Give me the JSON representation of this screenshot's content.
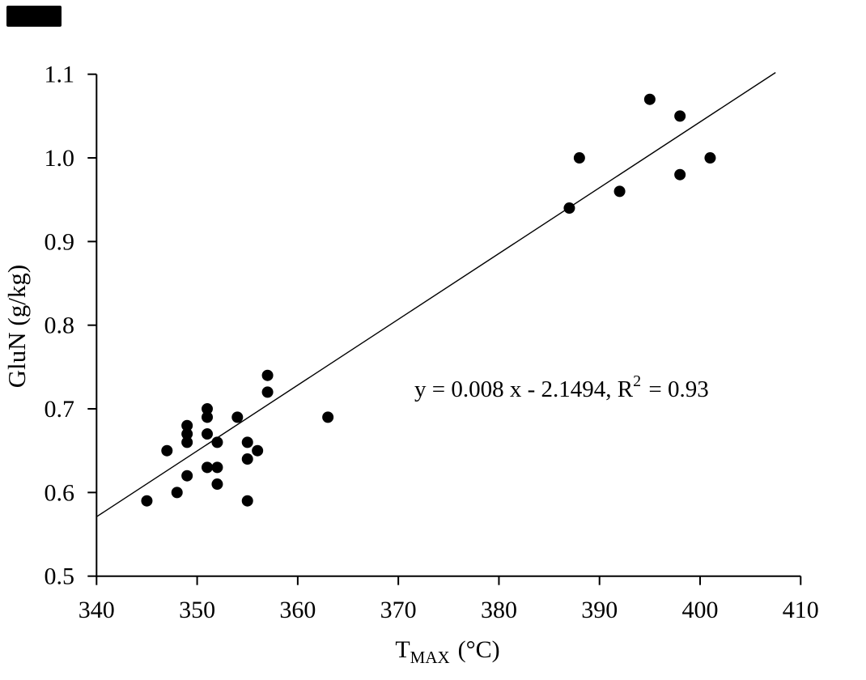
{
  "decor": {
    "corner_box_color": "#000000"
  },
  "chart_data": {
    "type": "scatter",
    "title": "",
    "xlabel": {
      "prefix": "T",
      "sub": "MAX",
      "suffix": "(°C)",
      "full": "TMAX (°C)"
    },
    "ylabel": "GluN (g/kg)",
    "xlim": [
      340,
      410
    ],
    "ylim": [
      0.5,
      1.1
    ],
    "x_ticks": [
      "340",
      "350",
      "360",
      "370",
      "380",
      "390",
      "400",
      "410"
    ],
    "y_ticks": [
      "0.5",
      "0.6",
      "0.7",
      "0.8",
      "0.9",
      "1.0",
      "1.1"
    ],
    "grid": false,
    "legend": "none",
    "marker": {
      "shape": "circle",
      "color": "#000000",
      "radius_px": 7
    },
    "axis_color": "#000000",
    "points": [
      [
        345,
        0.59
      ],
      [
        347,
        0.65
      ],
      [
        348,
        0.6
      ],
      [
        349,
        0.68
      ],
      [
        349,
        0.67
      ],
      [
        349,
        0.66
      ],
      [
        349,
        0.62
      ],
      [
        351,
        0.7
      ],
      [
        351,
        0.69
      ],
      [
        351,
        0.67
      ],
      [
        351,
        0.63
      ],
      [
        352,
        0.66
      ],
      [
        352,
        0.63
      ],
      [
        352,
        0.61
      ],
      [
        354,
        0.69
      ],
      [
        355,
        0.66
      ],
      [
        355,
        0.64
      ],
      [
        355,
        0.59
      ],
      [
        356,
        0.65
      ],
      [
        357,
        0.74
      ],
      [
        357,
        0.72
      ],
      [
        363,
        0.69
      ],
      [
        387,
        0.94
      ],
      [
        388,
        1.0
      ],
      [
        392,
        0.96
      ],
      [
        395,
        1.07
      ],
      [
        398,
        1.05
      ],
      [
        398,
        0.98
      ],
      [
        401,
        1.0
      ]
    ],
    "trendline": {
      "slope": 0.008,
      "intercept": -2.1494,
      "r_squared": 0.93,
      "draw_x1": 340,
      "draw_y1": 0.571,
      "draw_x2": 407.5,
      "draw_y2": 1.102,
      "color": "#000000"
    },
    "annotation": {
      "pre": "y = 0.008 x - 2.1494, R",
      "sup": "2",
      "post": " = 0.93",
      "full": "y = 0.008 x - 2.1494, R² = 0.93"
    }
  }
}
